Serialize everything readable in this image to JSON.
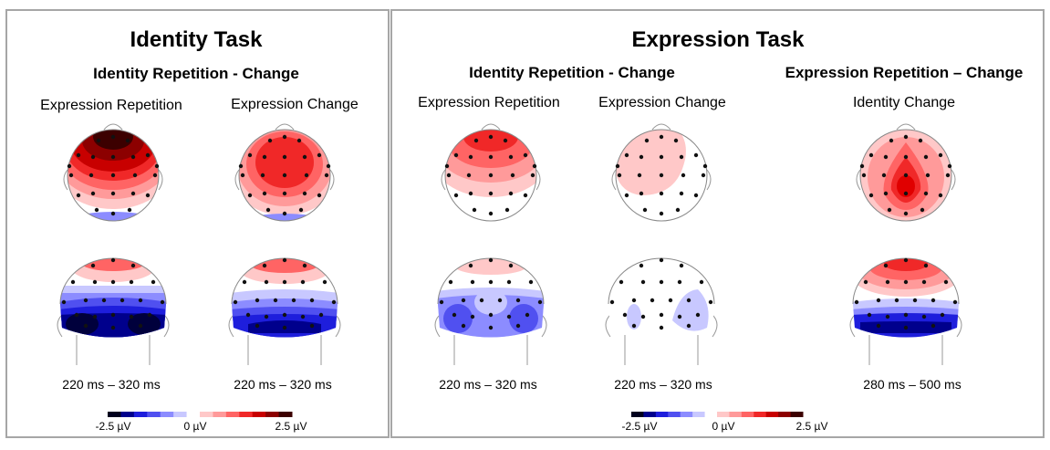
{
  "left_panel": {
    "title": "Identity Task",
    "subtitle": "Identity Repetition - Change",
    "conditions": [
      "Expression  Repetition",
      "Expression Change"
    ],
    "time_windows": [
      "220 ms – 320 ms",
      "220 ms – 320 ms"
    ]
  },
  "right_panel": {
    "title": "Expression Task",
    "subtitles": [
      "Identity Repetition - Change",
      "Expression Repetition – Change"
    ],
    "conditions": [
      "Expression Repetition",
      "Expression Change",
      "Identity  Change"
    ],
    "time_windows": [
      "220 ms – 320 ms",
      "220 ms – 320 ms",
      "280 ms – 500 ms"
    ]
  },
  "colorbar": {
    "min_label": "-2.5 µV",
    "mid_label": "0 µV",
    "max_label": "2.5 µV",
    "colors": [
      "#00001e",
      "#00008c",
      "#1e1edc",
      "#5050f0",
      "#8c8cff",
      "#c8c8ff",
      "#ffffff",
      "#ffc8c8",
      "#ff9a9a",
      "#ff6464",
      "#f02828",
      "#c80000",
      "#8c0000",
      "#3c0000"
    ]
  },
  "colors": {
    "frame": "#a6a6a6",
    "positive": "#ff0000",
    "negative": "#0000cc"
  }
}
